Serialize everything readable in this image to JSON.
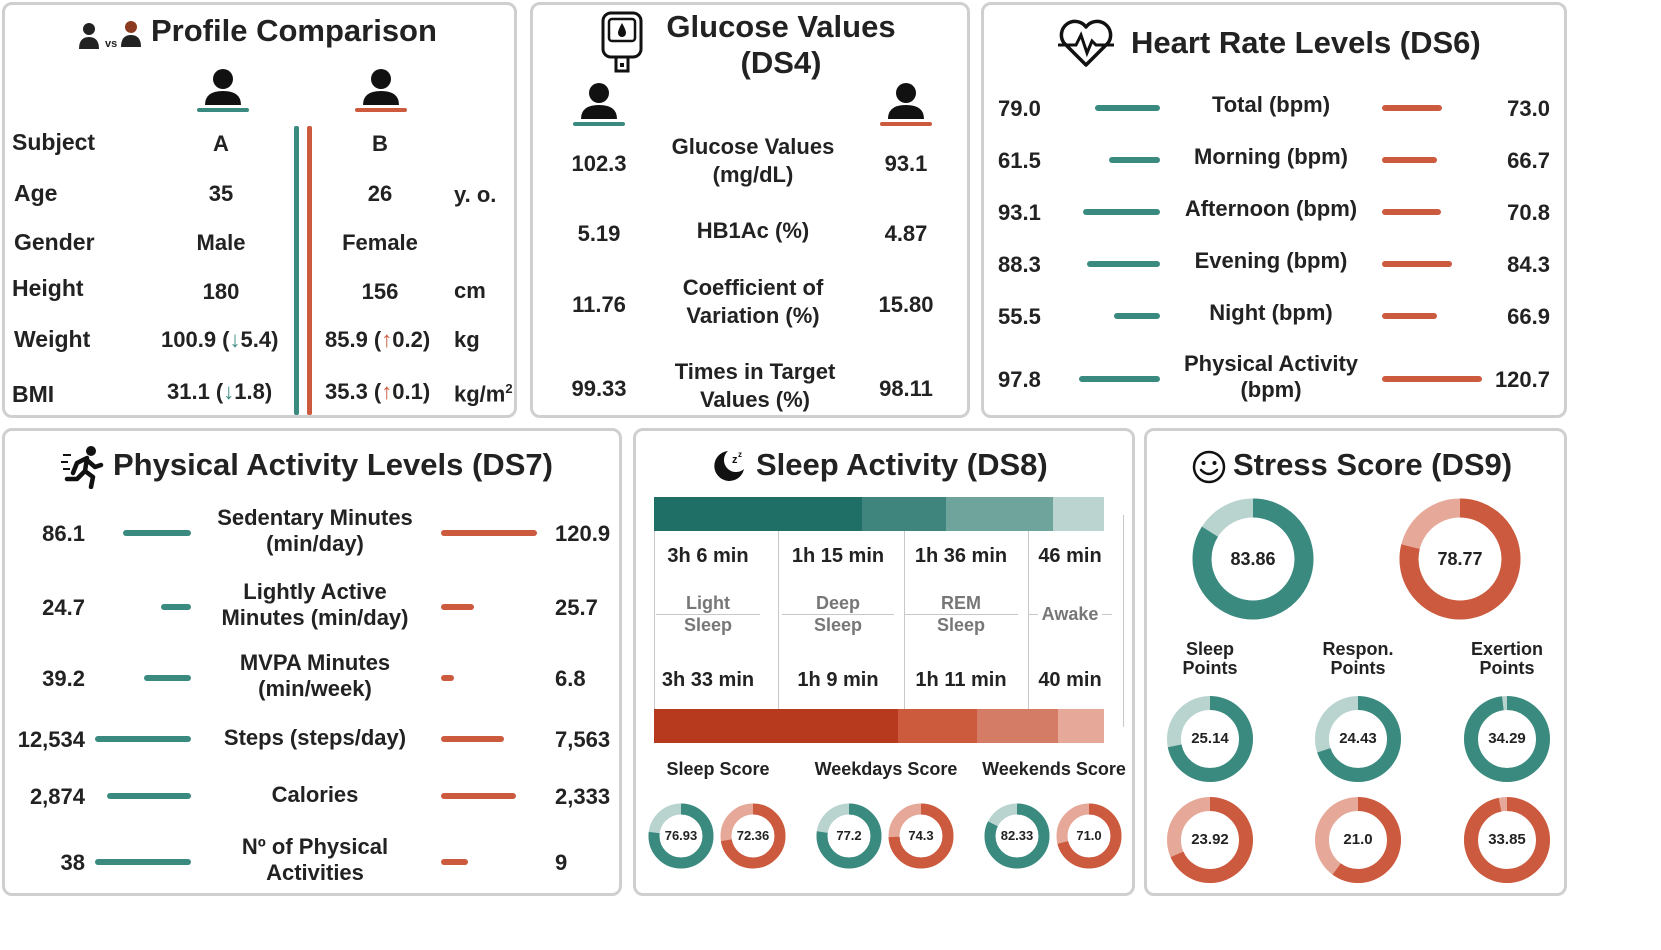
{
  "colors": {
    "teal": "#3a8a80",
    "red": "#cb5a3e",
    "teal_light": "#b9d3cf",
    "red_light": "#e6a898"
  },
  "profile": {
    "title": "Profile Comparison",
    "vs": "vs",
    "rows": [
      {
        "label": "Subject",
        "a": "A",
        "b": "B",
        "unit": ""
      },
      {
        "label": "Age",
        "a": "35",
        "b": "26",
        "unit": "y. o."
      },
      {
        "label": "Gender",
        "a": "Male",
        "b": "Female",
        "unit": ""
      },
      {
        "label": "Height",
        "a": "180",
        "b": "156",
        "unit": "cm"
      },
      {
        "label": "Weight",
        "a_main": "100.9 (",
        "a_arrow": "↓",
        "a_delta": "5.4)",
        "b_main": "85.9 (",
        "b_arrow": "↑",
        "b_delta": "0.2)",
        "unit": "kg"
      },
      {
        "label": "BMI",
        "a_main": "31.1 (",
        "a_arrow": "↓",
        "a_delta": "1.8)",
        "b_main": "35.3 (",
        "b_arrow": "↑",
        "b_delta": "0.1)",
        "unit": "kg/m",
        "unit_sup": "2"
      }
    ]
  },
  "glucose": {
    "title_line1": "Glucose Values",
    "title_line2": "(DS4)",
    "rows": [
      {
        "a": "102.3",
        "l1": "Glucose Values",
        "l2": "(mg/dL)",
        "b": "93.1"
      },
      {
        "a": "5.19",
        "l1": "HB1Ac (%)",
        "l2": "",
        "b": "4.87"
      },
      {
        "a": "11.76",
        "l1": "Coefficient of",
        "l2": "Variation (%)",
        "b": "15.80"
      },
      {
        "a": "99.33",
        "l1": "Times in Target",
        "l2": "Values (%)",
        "b": "98.11"
      }
    ]
  },
  "heart": {
    "title": "Heart Rate Levels (DS6)",
    "rows": [
      {
        "a": "79.0",
        "l1": "Total (bpm)",
        "l2": "",
        "b": "73.0",
        "av": 79.0,
        "bv": 73.0
      },
      {
        "a": "61.5",
        "l1": "Morning (bpm)",
        "l2": "",
        "b": "66.7",
        "av": 61.5,
        "bv": 66.7
      },
      {
        "a": "93.1",
        "l1": "Afternoon (bpm)",
        "l2": "",
        "b": "70.8",
        "av": 93.1,
        "bv": 70.8
      },
      {
        "a": "88.3",
        "l1": "Evening (bpm)",
        "l2": "",
        "b": "84.3",
        "av": 88.3,
        "bv": 84.3
      },
      {
        "a": "55.5",
        "l1": "Night (bpm)",
        "l2": "",
        "b": "66.9",
        "av": 55.5,
        "bv": 66.9
      },
      {
        "a": "97.8",
        "l1": "Physical Activity",
        "l2": "(bpm)",
        "b": "120.7",
        "av": 97.8,
        "bv": 120.7
      }
    ]
  },
  "activity": {
    "title": "Physical Activity Levels (DS7)",
    "rows": [
      {
        "a": "86.1",
        "l1": "Sedentary Minutes",
        "l2": "(min/day)",
        "b": "120.9",
        "af": 0.71,
        "bf": 1.0
      },
      {
        "a": "24.7",
        "l1": "Lightly Active",
        "l2": "Minutes (min/day)",
        "b": "25.7",
        "af": 0.31,
        "bf": 0.34
      },
      {
        "a": "39.2",
        "l1": "MVPA Minutes",
        "l2": "(min/week)",
        "b": "6.8",
        "af": 0.49,
        "bf": 0.14
      },
      {
        "a": "12,534",
        "l1": "Steps (steps/day)",
        "l2": "",
        "b": "7,563",
        "af": 1.0,
        "bf": 0.66
      },
      {
        "a": "2,874",
        "l1": "Calories",
        "l2": "",
        "b": "2,333",
        "af": 0.88,
        "bf": 0.78
      },
      {
        "a": "38",
        "l1": "Nº of Physical",
        "l2": "Activities",
        "b": "9",
        "af": 1.0,
        "bf": 0.28
      }
    ]
  },
  "sleep": {
    "title": "Sleep Activity (DS8)",
    "stages": [
      {
        "name1": "Light",
        "name2": "Sleep",
        "a": "3h 6 min",
        "b": "3h 33 min",
        "amin": 186,
        "bmin": 213
      },
      {
        "name1": "Deep",
        "name2": "Sleep",
        "a": "1h 15 min",
        "b": "1h 9 min",
        "amin": 75,
        "bmin": 69
      },
      {
        "name1": "REM",
        "name2": "Sleep",
        "a": "1h 36 min",
        "b": "1h 11 min",
        "amin": 96,
        "bmin": 71
      },
      {
        "name1": "Awake",
        "name2": "",
        "a": "46 min",
        "b": "40 min",
        "amin": 46,
        "bmin": 40
      }
    ],
    "scores": [
      {
        "label": "Sleep Score",
        "a": "76.93",
        "b": "72.36",
        "av": 76.93,
        "bv": 72.36
      },
      {
        "label": "Weekdays Score",
        "a": "77.2",
        "b": "74.3",
        "av": 77.2,
        "bv": 74.3
      },
      {
        "label": "Weekends Score",
        "a": "82.33",
        "b": "71.0",
        "av": 82.33,
        "bv": 71.0
      }
    ]
  },
  "stress": {
    "title": "Stress Score (DS9)",
    "main_a": "83.86",
    "main_a_v": 83.86,
    "main_b": "78.77",
    "main_b_v": 78.77,
    "cols": [
      {
        "l1": "Sleep",
        "l2": "Points",
        "a": "25.14",
        "b": "23.92",
        "av": 25.14,
        "bv": 23.92
      },
      {
        "l1": "Respon.",
        "l2": "Points",
        "a": "24.43",
        "b": "21.0",
        "av": 24.43,
        "bv": 21.0
      },
      {
        "l1": "Exertion",
        "l2": "Points",
        "a": "34.29",
        "b": "33.85",
        "av": 34.29,
        "bv": 33.85
      }
    ]
  }
}
